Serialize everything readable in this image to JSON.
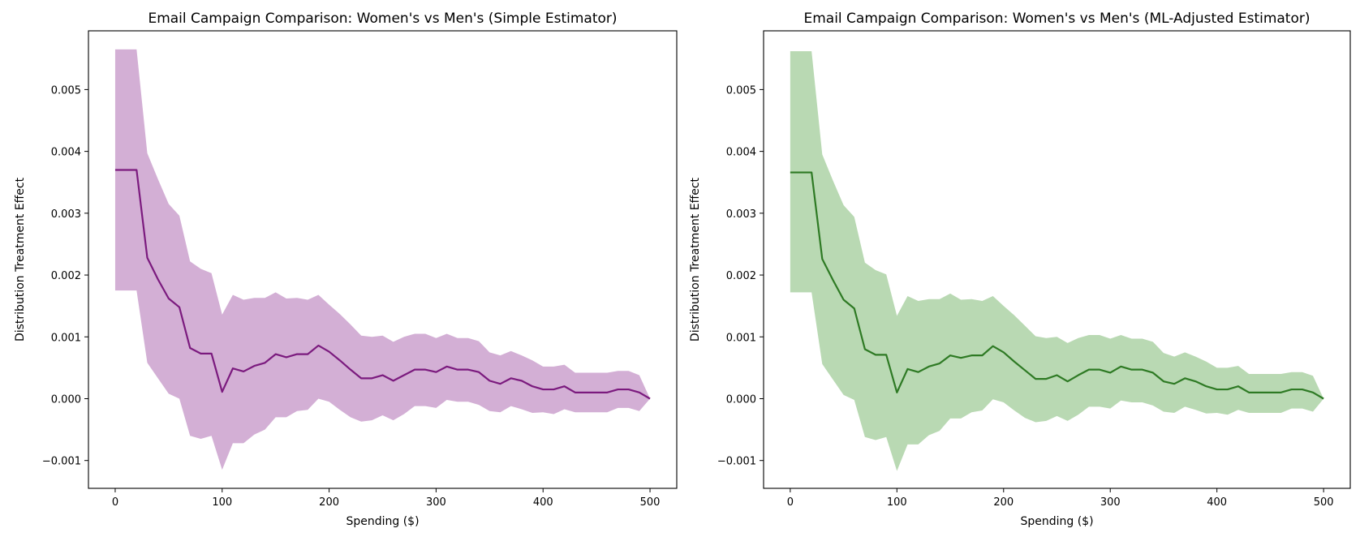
{
  "chart_data": [
    {
      "type": "line",
      "title": "Email Campaign Comparison: Women's vs Men's (Simple Estimator)",
      "xlabel": "Spending ($)",
      "ylabel": "Distribution Treatment Effect",
      "xlim": [
        -25,
        525
      ],
      "ylim": [
        -0.00145,
        0.00595
      ],
      "xticks": [
        0,
        100,
        200,
        300,
        400,
        500
      ],
      "yticks": [
        -0.001,
        0.0,
        0.001,
        0.002,
        0.003,
        0.004,
        0.005
      ],
      "xtick_labels": [
        "0",
        "100",
        "200",
        "300",
        "400",
        "500"
      ],
      "ytick_labels": [
        "−0.001",
        "0.000",
        "0.001",
        "0.002",
        "0.003",
        "0.004",
        "0.005"
      ],
      "grid": false,
      "line_color": "#7b1a7e",
      "band_color": "#d3afd5",
      "series": [
        {
          "x": [
            0,
            10,
            20,
            30,
            40,
            50,
            60,
            70,
            80,
            90,
            100,
            110,
            120,
            130,
            140,
            150,
            160,
            170,
            180,
            190,
            200,
            210,
            220,
            230,
            240,
            250,
            260,
            270,
            280,
            290,
            300,
            310,
            320,
            330,
            340,
            350,
            360,
            370,
            380,
            390,
            400,
            410,
            420,
            430,
            440,
            450,
            460,
            470,
            480,
            490,
            500
          ],
          "values": [
            0.0037,
            0.0037,
            0.0037,
            0.00228,
            0.00193,
            0.00162,
            0.00148,
            0.00082,
            0.00073,
            0.00073,
            0.00011,
            0.00049,
            0.00044,
            0.00053,
            0.00058,
            0.00072,
            0.00067,
            0.00072,
            0.00072,
            0.00086,
            0.00076,
            0.00062,
            0.00047,
            0.00033,
            0.00033,
            0.00038,
            0.00029,
            0.00038,
            0.00047,
            0.00047,
            0.00043,
            0.00052,
            0.00047,
            0.00047,
            0.00043,
            0.00029,
            0.00024,
            0.00033,
            0.00029,
            0.0002,
            0.00015,
            0.00015,
            0.0002,
            0.0001,
            0.0001,
            0.0001,
            0.0001,
            0.00015,
            0.00015,
            0.0001,
            0.0
          ],
          "lower": [
            0.00175,
            0.00175,
            0.00175,
            0.00058,
            0.00033,
            8e-05,
            0.0,
            -0.0006,
            -0.00065,
            -0.0006,
            -0.00115,
            -0.00072,
            -0.00072,
            -0.00058,
            -0.0005,
            -0.0003,
            -0.0003,
            -0.0002,
            -0.00018,
            0.0,
            -5e-05,
            -0.00018,
            -0.0003,
            -0.00037,
            -0.00035,
            -0.00027,
            -0.00035,
            -0.00025,
            -0.00012,
            -0.00012,
            -0.00015,
            -2e-05,
            -5e-05,
            -5e-05,
            -0.0001,
            -0.0002,
            -0.00022,
            -0.00012,
            -0.00017,
            -0.00023,
            -0.00022,
            -0.00025,
            -0.00017,
            -0.00022,
            -0.00022,
            -0.00022,
            -0.00022,
            -0.00015,
            -0.00015,
            -0.0002,
            0.0
          ],
          "upper": [
            0.00565,
            0.00565,
            0.00565,
            0.00397,
            0.00355,
            0.00315,
            0.00296,
            0.00222,
            0.0021,
            0.00203,
            0.00136,
            0.00168,
            0.0016,
            0.00163,
            0.00163,
            0.00172,
            0.00162,
            0.00163,
            0.0016,
            0.00168,
            0.00152,
            0.00137,
            0.0012,
            0.00102,
            0.001,
            0.00102,
            0.00092,
            0.001,
            0.00105,
            0.00105,
            0.00098,
            0.00105,
            0.00098,
            0.00098,
            0.00093,
            0.00075,
            0.0007,
            0.00077,
            0.0007,
            0.00062,
            0.00052,
            0.00052,
            0.00055,
            0.00042,
            0.00042,
            0.00042,
            0.00042,
            0.00045,
            0.00045,
            0.00038,
            0.0
          ]
        }
      ]
    },
    {
      "type": "line",
      "title": "Email Campaign Comparison: Women's vs Men's (ML-Adjusted Estimator)",
      "xlabel": "Spending ($)",
      "ylabel": "Distribution Treatment Effect",
      "xlim": [
        -25,
        525
      ],
      "ylim": [
        -0.00145,
        0.00595
      ],
      "xticks": [
        0,
        100,
        200,
        300,
        400,
        500
      ],
      "yticks": [
        -0.001,
        0.0,
        0.001,
        0.002,
        0.003,
        0.004,
        0.005
      ],
      "xtick_labels": [
        "0",
        "100",
        "200",
        "300",
        "400",
        "500"
      ],
      "ytick_labels": [
        "−0.001",
        "0.000",
        "0.001",
        "0.002",
        "0.003",
        "0.004",
        "0.005"
      ],
      "grid": false,
      "line_color": "#2e7a24",
      "band_color": "#b9d9b3",
      "series": [
        {
          "x": [
            0,
            10,
            20,
            30,
            40,
            50,
            60,
            70,
            80,
            90,
            100,
            110,
            120,
            130,
            140,
            150,
            160,
            170,
            180,
            190,
            200,
            210,
            220,
            230,
            240,
            250,
            260,
            270,
            280,
            290,
            300,
            310,
            320,
            330,
            340,
            350,
            360,
            370,
            380,
            390,
            400,
            410,
            420,
            430,
            440,
            450,
            460,
            470,
            480,
            490,
            500
          ],
          "values": [
            0.00366,
            0.00366,
            0.00366,
            0.00226,
            0.00192,
            0.0016,
            0.00146,
            0.0008,
            0.00071,
            0.00071,
            0.0001,
            0.00048,
            0.00043,
            0.00052,
            0.00057,
            0.0007,
            0.00066,
            0.0007,
            0.0007,
            0.00085,
            0.00075,
            0.0006,
            0.00046,
            0.00032,
            0.00032,
            0.00038,
            0.00028,
            0.00038,
            0.00047,
            0.00047,
            0.00042,
            0.00052,
            0.00047,
            0.00047,
            0.00042,
            0.00028,
            0.00024,
            0.00033,
            0.00028,
            0.0002,
            0.00015,
            0.00015,
            0.0002,
            0.0001,
            0.0001,
            0.0001,
            0.0001,
            0.00015,
            0.00015,
            0.0001,
            0.0
          ],
          "lower": [
            0.00172,
            0.00172,
            0.00172,
            0.00056,
            0.00031,
            6e-05,
            -2e-05,
            -0.00062,
            -0.00067,
            -0.00062,
            -0.00117,
            -0.00074,
            -0.00074,
            -0.00059,
            -0.00052,
            -0.00032,
            -0.00032,
            -0.00022,
            -0.00019,
            -1e-05,
            -6e-05,
            -0.00019,
            -0.00031,
            -0.00038,
            -0.00036,
            -0.00028,
            -0.00036,
            -0.00026,
            -0.00013,
            -0.00013,
            -0.00016,
            -3e-05,
            -6e-05,
            -6e-05,
            -0.00011,
            -0.00021,
            -0.00023,
            -0.00013,
            -0.00018,
            -0.00024,
            -0.00023,
            -0.00026,
            -0.00018,
            -0.00023,
            -0.00023,
            -0.00023,
            -0.00023,
            -0.00016,
            -0.00016,
            -0.00021,
            0.0
          ],
          "upper": [
            0.00562,
            0.00562,
            0.00562,
            0.00395,
            0.00353,
            0.00313,
            0.00294,
            0.0022,
            0.00208,
            0.00201,
            0.00134,
            0.00166,
            0.00158,
            0.00161,
            0.00161,
            0.0017,
            0.0016,
            0.00161,
            0.00158,
            0.00166,
            0.0015,
            0.00135,
            0.00118,
            0.00101,
            0.00098,
            0.001,
            0.0009,
            0.00098,
            0.00103,
            0.00103,
            0.00097,
            0.00103,
            0.00097,
            0.00097,
            0.00092,
            0.00074,
            0.00068,
            0.00075,
            0.00068,
            0.0006,
            0.0005,
            0.0005,
            0.00053,
            0.0004,
            0.0004,
            0.0004,
            0.0004,
            0.00043,
            0.00043,
            0.00037,
            0.0
          ]
        }
      ]
    }
  ]
}
